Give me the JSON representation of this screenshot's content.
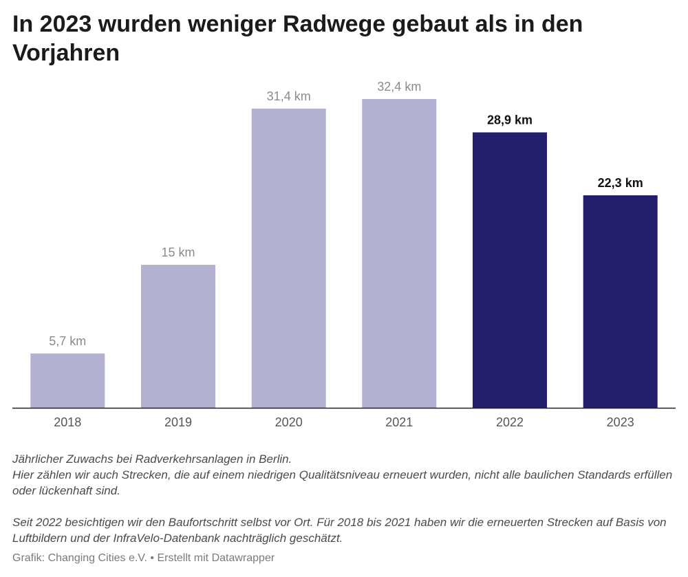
{
  "title": "In 2023 wurden weniger Radwege gebaut als in den Vorjahren",
  "notes": {
    "line1": "Jährlicher Zuwachs bei Radverkehrsanlagen in Berlin.",
    "line2": "Hier zählen wir auch Strecken, die auf einem niedrigen Qualitätsniveau erneuert wurden, nicht alle baulichen Standards erfüllen oder lückenhaft sind.",
    "line3": "Seit 2022 besichtigen wir den Baufortschritt selbst vor Ort. Für 2018 bis 2021 haben wir die erneuerten Strecken auf Basis von Luftbildern und der InfraVelo-Datenbank nachträglich geschätzt."
  },
  "footer": "Grafik: Changing Cities e.V. • Erstellt mit Datawrapper",
  "colors": {
    "estimated": "#b3b1d1",
    "observed": "#231e6b",
    "label_estimated": "#8a8a8a",
    "label_observed": "#111111",
    "axis": "#222222",
    "tick_label": "#555555"
  },
  "chart_data": {
    "type": "bar",
    "categories": [
      "2018",
      "2019",
      "2020",
      "2021",
      "2022",
      "2023"
    ],
    "values": [
      5.7,
      15,
      31.4,
      32.4,
      28.9,
      22.3
    ],
    "value_labels": [
      "5,7 km",
      "15 km",
      "31,4 km",
      "32,4 km",
      "28,9 km",
      "22,3 km"
    ],
    "highlighted": [
      false,
      false,
      false,
      false,
      true,
      true
    ],
    "ylim": [
      0,
      32.4
    ],
    "grid": false,
    "xlabel": "",
    "ylabel": ""
  }
}
